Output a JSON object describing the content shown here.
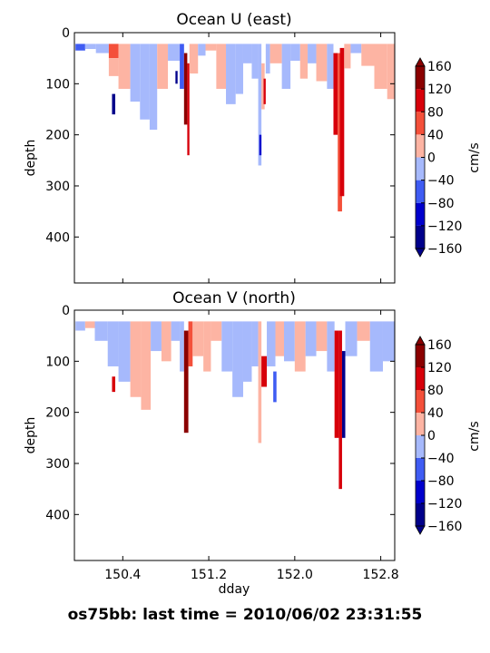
{
  "suptitle": "os75bb: last time = 2010/06/02 23:31:55",
  "chart_data": [
    {
      "type": "heatmap",
      "title": "Ocean U (east)",
      "xlabel": "",
      "ylabel": "depth",
      "xlim": [
        149.95,
        152.93
      ],
      "ylim": [
        490,
        0
      ],
      "yticks": [
        0,
        100,
        200,
        300,
        400
      ],
      "xticks": [
        150.4,
        151.2,
        152.0,
        152.8
      ],
      "xticklabels": [
        "",
        "",
        "",
        ""
      ],
      "colorbar": {
        "label": "cm/s",
        "range": [
          -160,
          160
        ],
        "ticks": [
          160,
          120,
          80,
          40,
          0,
          -40,
          -80,
          -120,
          -160
        ],
        "ticklabels": [
          "160",
          "120",
          "80",
          "40",
          "0",
          "−40",
          "−80",
          "−120",
          "−160"
        ],
        "colors": [
          "#00008b",
          "#0000cd",
          "#3f5cf3",
          "#a6b9fc",
          "#fdb4a3",
          "#f4503a",
          "#d7000a",
          "#8b0000"
        ],
        "extend": "both"
      },
      "segments": [
        {
          "x0": 149.96,
          "x1": 150.05,
          "d0": 22,
          "d1": 35,
          "v": -60
        },
        {
          "x0": 150.05,
          "x1": 150.15,
          "d0": 22,
          "d1": 32,
          "v": -25
        },
        {
          "x0": 150.15,
          "x1": 150.27,
          "d0": 22,
          "d1": 40,
          "v": -20
        },
        {
          "x0": 150.27,
          "x1": 150.36,
          "d0": 22,
          "d1": 50,
          "v": 60
        },
        {
          "x0": 150.27,
          "x1": 150.36,
          "d0": 50,
          "d1": 85,
          "v": 20
        },
        {
          "x0": 150.3,
          "x1": 150.33,
          "d0": 120,
          "d1": 160,
          "v": -140
        },
        {
          "x0": 150.36,
          "x1": 150.47,
          "d0": 22,
          "d1": 110,
          "v": 25
        },
        {
          "x0": 150.47,
          "x1": 150.56,
          "d0": 22,
          "d1": 135,
          "v": -25
        },
        {
          "x0": 150.56,
          "x1": 150.65,
          "d0": 22,
          "d1": 170,
          "v": -25
        },
        {
          "x0": 150.65,
          "x1": 150.72,
          "d0": 22,
          "d1": 190,
          "v": -25
        },
        {
          "x0": 150.72,
          "x1": 150.82,
          "d0": 22,
          "d1": 110,
          "v": 20
        },
        {
          "x0": 150.82,
          "x1": 150.93,
          "d0": 22,
          "d1": 55,
          "v": -20
        },
        {
          "x0": 150.89,
          "x1": 150.91,
          "d0": 75,
          "d1": 100,
          "v": -140
        },
        {
          "x0": 150.93,
          "x1": 150.97,
          "d0": 22,
          "d1": 110,
          "v": -60
        },
        {
          "x0": 150.97,
          "x1": 151.0,
          "d0": 40,
          "d1": 180,
          "v": 140
        },
        {
          "x0": 151.0,
          "x1": 151.02,
          "d0": 60,
          "d1": 240,
          "v": 100
        },
        {
          "x0": 151.02,
          "x1": 151.1,
          "d0": 22,
          "d1": 80,
          "v": 20
        },
        {
          "x0": 151.1,
          "x1": 151.17,
          "d0": 22,
          "d1": 45,
          "v": -25
        },
        {
          "x0": 151.17,
          "x1": 151.27,
          "d0": 22,
          "d1": 35,
          "v": 30
        },
        {
          "x0": 151.27,
          "x1": 151.36,
          "d0": 22,
          "d1": 110,
          "v": 20
        },
        {
          "x0": 151.36,
          "x1": 151.45,
          "d0": 22,
          "d1": 140,
          "v": -30
        },
        {
          "x0": 151.45,
          "x1": 151.52,
          "d0": 22,
          "d1": 120,
          "v": -25
        },
        {
          "x0": 151.52,
          "x1": 151.6,
          "d0": 22,
          "d1": 60,
          "v": -20
        },
        {
          "x0": 151.6,
          "x1": 151.66,
          "d0": 22,
          "d1": 90,
          "v": -25
        },
        {
          "x0": 151.66,
          "x1": 151.69,
          "d0": 22,
          "d1": 260,
          "v": -30
        },
        {
          "x0": 151.67,
          "x1": 151.69,
          "d0": 200,
          "d1": 240,
          "v": -100
        },
        {
          "x0": 151.69,
          "x1": 151.72,
          "d0": 60,
          "d1": 150,
          "v": 30
        },
        {
          "x0": 151.71,
          "x1": 151.73,
          "d0": 90,
          "d1": 140,
          "v": 100
        },
        {
          "x0": 151.73,
          "x1": 151.77,
          "d0": 22,
          "d1": 80,
          "v": -25
        },
        {
          "x0": 151.77,
          "x1": 151.88,
          "d0": 22,
          "d1": 60,
          "v": 25
        },
        {
          "x0": 151.88,
          "x1": 151.96,
          "d0": 22,
          "d1": 110,
          "v": -25
        },
        {
          "x0": 151.96,
          "x1": 152.05,
          "d0": 22,
          "d1": 55,
          "v": -30
        },
        {
          "x0": 152.05,
          "x1": 152.12,
          "d0": 22,
          "d1": 90,
          "v": 25
        },
        {
          "x0": 152.12,
          "x1": 152.2,
          "d0": 22,
          "d1": 60,
          "v": -20
        },
        {
          "x0": 152.2,
          "x1": 152.3,
          "d0": 22,
          "d1": 95,
          "v": 30
        },
        {
          "x0": 152.3,
          "x1": 152.36,
          "d0": 22,
          "d1": 110,
          "v": -20
        },
        {
          "x0": 152.36,
          "x1": 152.4,
          "d0": 40,
          "d1": 200,
          "v": 100
        },
        {
          "x0": 152.4,
          "x1": 152.44,
          "d0": 40,
          "d1": 350,
          "v": 60
        },
        {
          "x0": 152.42,
          "x1": 152.46,
          "d0": 30,
          "d1": 320,
          "v": 110
        },
        {
          "x0": 152.46,
          "x1": 152.52,
          "d0": 22,
          "d1": 70,
          "v": 20
        },
        {
          "x0": 152.52,
          "x1": 152.62,
          "d0": 22,
          "d1": 40,
          "v": -20
        },
        {
          "x0": 152.62,
          "x1": 152.74,
          "d0": 22,
          "d1": 65,
          "v": 25
        },
        {
          "x0": 152.74,
          "x1": 152.86,
          "d0": 22,
          "d1": 110,
          "v": 20
        },
        {
          "x0": 152.86,
          "x1": 152.93,
          "d0": 22,
          "d1": 130,
          "v": 25
        }
      ]
    },
    {
      "type": "heatmap",
      "title": "Ocean V (north)",
      "xlabel": "dday",
      "ylabel": "depth",
      "xlim": [
        149.95,
        152.93
      ],
      "ylim": [
        490,
        0
      ],
      "yticks": [
        0,
        100,
        200,
        300,
        400
      ],
      "xticks": [
        150.4,
        151.2,
        152.0,
        152.8
      ],
      "xticklabels": [
        "150.4",
        "151.2",
        "152.0",
        "152.8"
      ],
      "colorbar": {
        "label": "cm/s",
        "range": [
          -160,
          160
        ],
        "ticks": [
          160,
          120,
          80,
          40,
          0,
          -40,
          -80,
          -120,
          -160
        ],
        "ticklabels": [
          "160",
          "120",
          "80",
          "40",
          "0",
          "−40",
          "−80",
          "−120",
          "−160"
        ],
        "colors": [
          "#00008b",
          "#0000cd",
          "#3f5cf3",
          "#a6b9fc",
          "#fdb4a3",
          "#f4503a",
          "#d7000a",
          "#8b0000"
        ],
        "extend": "both"
      },
      "segments": [
        {
          "x0": 149.96,
          "x1": 150.05,
          "d0": 22,
          "d1": 40,
          "v": -20
        },
        {
          "x0": 150.05,
          "x1": 150.14,
          "d0": 22,
          "d1": 35,
          "v": 20
        },
        {
          "x0": 150.14,
          "x1": 150.26,
          "d0": 22,
          "d1": 60,
          "v": -25
        },
        {
          "x0": 150.26,
          "x1": 150.36,
          "d0": 22,
          "d1": 110,
          "v": -30
        },
        {
          "x0": 150.3,
          "x1": 150.33,
          "d0": 130,
          "d1": 160,
          "v": 100
        },
        {
          "x0": 150.36,
          "x1": 150.47,
          "d0": 22,
          "d1": 140,
          "v": -25
        },
        {
          "x0": 150.47,
          "x1": 150.57,
          "d0": 22,
          "d1": 170,
          "v": 25
        },
        {
          "x0": 150.57,
          "x1": 150.66,
          "d0": 22,
          "d1": 195,
          "v": 25
        },
        {
          "x0": 150.66,
          "x1": 150.76,
          "d0": 22,
          "d1": 80,
          "v": -20
        },
        {
          "x0": 150.76,
          "x1": 150.85,
          "d0": 22,
          "d1": 100,
          "v": 20
        },
        {
          "x0": 150.85,
          "x1": 150.93,
          "d0": 22,
          "d1": 60,
          "v": -25
        },
        {
          "x0": 150.93,
          "x1": 150.97,
          "d0": 22,
          "d1": 120,
          "v": -20
        },
        {
          "x0": 150.97,
          "x1": 151.01,
          "d0": 40,
          "d1": 240,
          "v": 130
        },
        {
          "x0": 151.01,
          "x1": 151.05,
          "d0": 22,
          "d1": 110,
          "v": 60
        },
        {
          "x0": 151.05,
          "x1": 151.15,
          "d0": 22,
          "d1": 90,
          "v": 25
        },
        {
          "x0": 151.15,
          "x1": 151.22,
          "d0": 22,
          "d1": 120,
          "v": 20
        },
        {
          "x0": 151.22,
          "x1": 151.32,
          "d0": 22,
          "d1": 60,
          "v": 25
        },
        {
          "x0": 151.32,
          "x1": 151.42,
          "d0": 22,
          "d1": 120,
          "v": -25
        },
        {
          "x0": 151.42,
          "x1": 151.52,
          "d0": 22,
          "d1": 170,
          "v": -25
        },
        {
          "x0": 151.52,
          "x1": 151.6,
          "d0": 22,
          "d1": 140,
          "v": -20
        },
        {
          "x0": 151.6,
          "x1": 151.66,
          "d0": 22,
          "d1": 110,
          "v": -25
        },
        {
          "x0": 151.66,
          "x1": 151.69,
          "d0": 22,
          "d1": 260,
          "v": 25
        },
        {
          "x0": 151.69,
          "x1": 151.74,
          "d0": 90,
          "d1": 150,
          "v": 100
        },
        {
          "x0": 151.74,
          "x1": 151.82,
          "d0": 22,
          "d1": 110,
          "v": -25
        },
        {
          "x0": 151.8,
          "x1": 151.83,
          "d0": 120,
          "d1": 180,
          "v": -80
        },
        {
          "x0": 151.82,
          "x1": 151.9,
          "d0": 22,
          "d1": 90,
          "v": 25
        },
        {
          "x0": 151.9,
          "x1": 152.0,
          "d0": 22,
          "d1": 100,
          "v": -20
        },
        {
          "x0": 152.0,
          "x1": 152.1,
          "d0": 22,
          "d1": 120,
          "v": 25
        },
        {
          "x0": 152.1,
          "x1": 152.2,
          "d0": 22,
          "d1": 90,
          "v": -20
        },
        {
          "x0": 152.2,
          "x1": 152.3,
          "d0": 22,
          "d1": 80,
          "v": 20
        },
        {
          "x0": 152.3,
          "x1": 152.37,
          "d0": 22,
          "d1": 120,
          "v": -25
        },
        {
          "x0": 152.37,
          "x1": 152.41,
          "d0": 40,
          "d1": 250,
          "v": 110
        },
        {
          "x0": 152.41,
          "x1": 152.44,
          "d0": 40,
          "d1": 350,
          "v": 90
        },
        {
          "x0": 152.44,
          "x1": 152.47,
          "d0": 80,
          "d1": 250,
          "v": -140
        },
        {
          "x0": 152.47,
          "x1": 152.58,
          "d0": 22,
          "d1": 90,
          "v": -25
        },
        {
          "x0": 152.58,
          "x1": 152.7,
          "d0": 22,
          "d1": 60,
          "v": 20
        },
        {
          "x0": 152.7,
          "x1": 152.82,
          "d0": 22,
          "d1": 120,
          "v": -20
        },
        {
          "x0": 152.82,
          "x1": 152.93,
          "d0": 22,
          "d1": 100,
          "v": -25
        }
      ]
    }
  ]
}
